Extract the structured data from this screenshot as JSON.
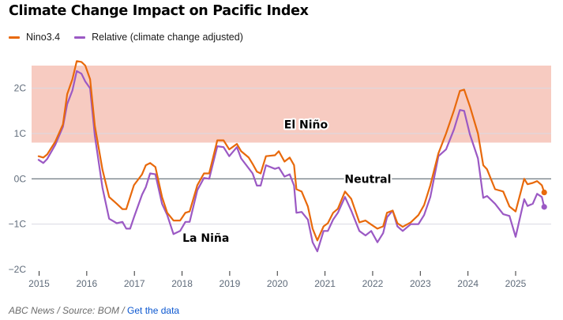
{
  "title": "Climate Change Impact on Pacific Index",
  "legend": [
    {
      "label": "Nino3.4",
      "color": "#e8690b"
    },
    {
      "label": "Relative (climate change adjusted)",
      "color": "#9b59c4"
    }
  ],
  "footer": {
    "source": "ABC News / Source: BOM / ",
    "link": "Get the data"
  },
  "colors": {
    "el_nino_band": "#f7cbc1",
    "la_nina_band": "#c0e9fc",
    "zero_line": "#5f6b74",
    "gridline": "#d9d9e3"
  },
  "chart_data": {
    "type": "line",
    "title": "Climate Change Impact on Pacific Index",
    "xlabel": "",
    "ylabel": "",
    "xlim": [
      2014.85,
      2025.95
    ],
    "ylim": [
      -2,
      2.5
    ],
    "grid": true,
    "legend_position": "top-left",
    "x_ticks": [
      2015,
      2016,
      2017,
      2018,
      2019,
      2020,
      2021,
      2022,
      2023,
      2024,
      2025
    ],
    "x_tick_labels": [
      "2015",
      "2016",
      "2017",
      "2018",
      "2019",
      "2020",
      "2021",
      "2022",
      "2023",
      "2024",
      "2025"
    ],
    "y_ticks": [
      2,
      1,
      0,
      -1,
      -2
    ],
    "y_tick_labels": [
      "2C",
      "1C",
      "0C",
      "−1C",
      "−2C"
    ],
    "bands": [
      {
        "name": "El Niño",
        "label": "El Niño",
        "from": 0.8,
        "to": 2.5,
        "label_at": [
          2020.6,
          1.2
        ]
      },
      {
        "name": "Neutral",
        "label": "Neutral",
        "from": -0.8,
        "to": 0.8,
        "label_at": [
          2021.9,
          0.0
        ]
      },
      {
        "name": "La Niña",
        "label": "La Niña",
        "from": -2.0,
        "to": -0.8,
        "label_at": [
          2018.5,
          -1.3
        ]
      }
    ],
    "series": [
      {
        "name": "Nino3.4",
        "color": "#e8690b",
        "points": [
          [
            2014.99,
            0.5
          ],
          [
            2015.09,
            0.47
          ],
          [
            2015.17,
            0.54
          ],
          [
            2015.34,
            0.82
          ],
          [
            2015.5,
            1.2
          ],
          [
            2015.59,
            1.87
          ],
          [
            2015.7,
            2.2
          ],
          [
            2015.79,
            2.6
          ],
          [
            2015.89,
            2.58
          ],
          [
            2015.97,
            2.5
          ],
          [
            2016.07,
            2.2
          ],
          [
            2016.17,
            1.17
          ],
          [
            2016.33,
            0.2
          ],
          [
            2016.47,
            -0.4
          ],
          [
            2016.63,
            -0.55
          ],
          [
            2016.75,
            -0.67
          ],
          [
            2016.83,
            -0.67
          ],
          [
            2016.91,
            -0.4
          ],
          [
            2016.99,
            -0.14
          ],
          [
            2017.16,
            0.1
          ],
          [
            2017.24,
            0.3
          ],
          [
            2017.33,
            0.35
          ],
          [
            2017.44,
            0.26
          ],
          [
            2017.58,
            -0.4
          ],
          [
            2017.69,
            -0.75
          ],
          [
            2017.82,
            -0.92
          ],
          [
            2017.96,
            -0.92
          ],
          [
            2018.07,
            -0.75
          ],
          [
            2018.16,
            -0.72
          ],
          [
            2018.32,
            -0.14
          ],
          [
            2018.46,
            0.12
          ],
          [
            2018.57,
            0.12
          ],
          [
            2018.74,
            0.85
          ],
          [
            2018.87,
            0.85
          ],
          [
            2018.99,
            0.65
          ],
          [
            2019.15,
            0.77
          ],
          [
            2019.24,
            0.61
          ],
          [
            2019.4,
            0.47
          ],
          [
            2019.48,
            0.33
          ],
          [
            2019.57,
            0.16
          ],
          [
            2019.65,
            0.12
          ],
          [
            2019.76,
            0.5
          ],
          [
            2019.95,
            0.52
          ],
          [
            2020.03,
            0.61
          ],
          [
            2020.15,
            0.38
          ],
          [
            2020.26,
            0.47
          ],
          [
            2020.35,
            0.3
          ],
          [
            2020.4,
            -0.23
          ],
          [
            2020.51,
            -0.28
          ],
          [
            2020.64,
            -0.61
          ],
          [
            2020.74,
            -1.1
          ],
          [
            2020.84,
            -1.36
          ],
          [
            2020.97,
            -1.05
          ],
          [
            2021.06,
            -0.98
          ],
          [
            2021.17,
            -0.75
          ],
          [
            2021.27,
            -0.66
          ],
          [
            2021.42,
            -0.28
          ],
          [
            2021.55,
            -0.44
          ],
          [
            2021.72,
            -0.96
          ],
          [
            2021.85,
            -0.92
          ],
          [
            2021.97,
            -1.01
          ],
          [
            2022.1,
            -1.1
          ],
          [
            2022.22,
            -1.05
          ],
          [
            2022.3,
            -0.75
          ],
          [
            2022.42,
            -0.7
          ],
          [
            2022.52,
            -0.98
          ],
          [
            2022.63,
            -1.06
          ],
          [
            2022.8,
            -0.96
          ],
          [
            2022.96,
            -0.8
          ],
          [
            2023.08,
            -0.58
          ],
          [
            2023.21,
            -0.14
          ],
          [
            2023.38,
            0.56
          ],
          [
            2023.54,
            1.0
          ],
          [
            2023.71,
            1.52
          ],
          [
            2023.83,
            1.94
          ],
          [
            2023.92,
            1.97
          ],
          [
            2024.04,
            1.6
          ],
          [
            2024.21,
            1.0
          ],
          [
            2024.32,
            0.3
          ],
          [
            2024.4,
            0.21
          ],
          [
            2024.57,
            -0.23
          ],
          [
            2024.74,
            -0.28
          ],
          [
            2024.87,
            -0.61
          ],
          [
            2025.0,
            -0.72
          ],
          [
            2025.18,
            0.0
          ],
          [
            2025.25,
            -0.12
          ],
          [
            2025.36,
            -0.09
          ],
          [
            2025.45,
            -0.05
          ],
          [
            2025.55,
            -0.14
          ],
          [
            2025.6,
            -0.3
          ]
        ]
      },
      {
        "name": "Relative (climate change adjusted)",
        "color": "#9b59c4",
        "points": [
          [
            2014.99,
            0.42
          ],
          [
            2015.09,
            0.35
          ],
          [
            2015.17,
            0.44
          ],
          [
            2015.34,
            0.75
          ],
          [
            2015.5,
            1.15
          ],
          [
            2015.59,
            1.65
          ],
          [
            2015.7,
            1.95
          ],
          [
            2015.79,
            2.38
          ],
          [
            2015.89,
            2.32
          ],
          [
            2015.97,
            2.15
          ],
          [
            2016.07,
            2.0
          ],
          [
            2016.17,
            0.95
          ],
          [
            2016.33,
            -0.2
          ],
          [
            2016.47,
            -0.88
          ],
          [
            2016.63,
            -0.98
          ],
          [
            2016.75,
            -0.95
          ],
          [
            2016.83,
            -1.1
          ],
          [
            2016.91,
            -1.1
          ],
          [
            2016.99,
            -0.85
          ],
          [
            2017.16,
            -0.35
          ],
          [
            2017.24,
            -0.18
          ],
          [
            2017.33,
            0.12
          ],
          [
            2017.44,
            0.1
          ],
          [
            2017.58,
            -0.55
          ],
          [
            2017.69,
            -0.8
          ],
          [
            2017.82,
            -1.22
          ],
          [
            2017.96,
            -1.15
          ],
          [
            2018.07,
            -0.95
          ],
          [
            2018.16,
            -0.95
          ],
          [
            2018.32,
            -0.25
          ],
          [
            2018.46,
            0.02
          ],
          [
            2018.57,
            0.0
          ],
          [
            2018.74,
            0.72
          ],
          [
            2018.87,
            0.7
          ],
          [
            2018.99,
            0.5
          ],
          [
            2019.15,
            0.7
          ],
          [
            2019.24,
            0.45
          ],
          [
            2019.4,
            0.23
          ],
          [
            2019.48,
            0.12
          ],
          [
            2019.57,
            -0.15
          ],
          [
            2019.65,
            -0.15
          ],
          [
            2019.76,
            0.3
          ],
          [
            2019.95,
            0.22
          ],
          [
            2020.03,
            0.25
          ],
          [
            2020.15,
            0.05
          ],
          [
            2020.26,
            0.1
          ],
          [
            2020.35,
            -0.15
          ],
          [
            2020.4,
            -0.75
          ],
          [
            2020.51,
            -0.73
          ],
          [
            2020.64,
            -0.9
          ],
          [
            2020.74,
            -1.4
          ],
          [
            2020.84,
            -1.6
          ],
          [
            2020.97,
            -1.15
          ],
          [
            2021.06,
            -1.15
          ],
          [
            2021.17,
            -0.9
          ],
          [
            2021.27,
            -0.75
          ],
          [
            2021.42,
            -0.4
          ],
          [
            2021.55,
            -0.7
          ],
          [
            2021.72,
            -1.15
          ],
          [
            2021.85,
            -1.25
          ],
          [
            2021.97,
            -1.15
          ],
          [
            2022.1,
            -1.4
          ],
          [
            2022.22,
            -1.2
          ],
          [
            2022.3,
            -0.85
          ],
          [
            2022.42,
            -0.7
          ],
          [
            2022.52,
            -1.05
          ],
          [
            2022.63,
            -1.15
          ],
          [
            2022.8,
            -1.0
          ],
          [
            2022.96,
            -1.0
          ],
          [
            2023.08,
            -0.8
          ],
          [
            2023.21,
            -0.4
          ],
          [
            2023.38,
            0.5
          ],
          [
            2023.54,
            0.65
          ],
          [
            2023.71,
            1.1
          ],
          [
            2023.83,
            1.52
          ],
          [
            2023.92,
            1.5
          ],
          [
            2024.04,
            0.98
          ],
          [
            2024.21,
            0.45
          ],
          [
            2024.32,
            -0.42
          ],
          [
            2024.4,
            -0.38
          ],
          [
            2024.57,
            -0.55
          ],
          [
            2024.74,
            -0.78
          ],
          [
            2024.87,
            -0.82
          ],
          [
            2025.0,
            -1.28
          ],
          [
            2025.18,
            -0.45
          ],
          [
            2025.25,
            -0.6
          ],
          [
            2025.36,
            -0.55
          ],
          [
            2025.45,
            -0.33
          ],
          [
            2025.55,
            -0.4
          ],
          [
            2025.6,
            -0.62
          ]
        ]
      }
    ]
  }
}
